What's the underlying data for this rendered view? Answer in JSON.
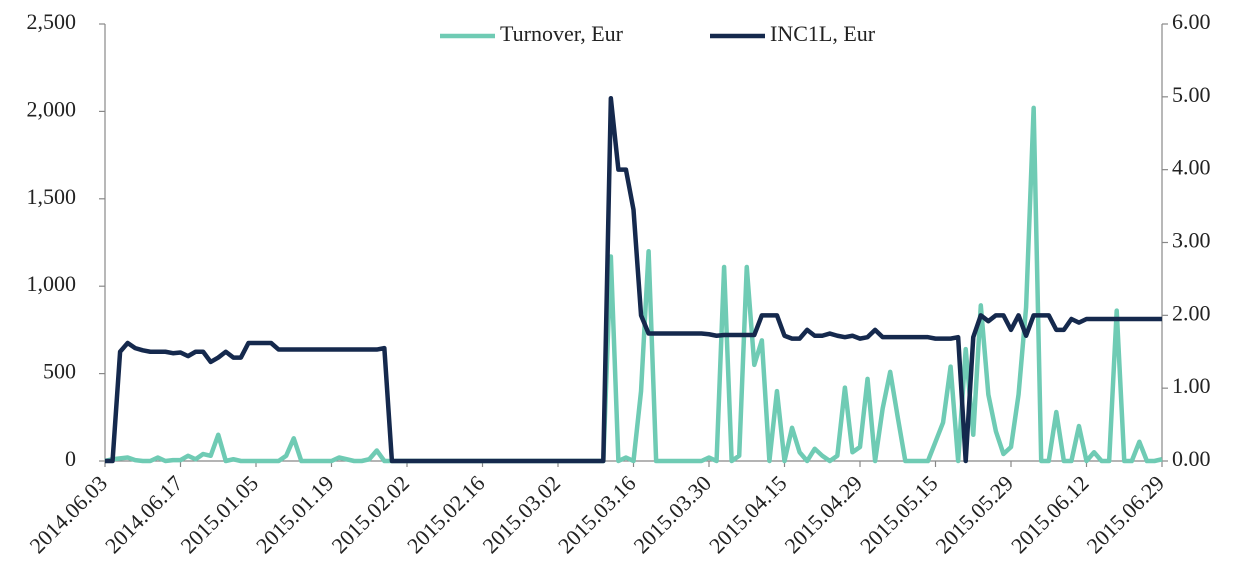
{
  "chart_data": {
    "type": "line",
    "legend": "top",
    "categories": [
      "2014.06.03",
      null,
      null,
      null,
      null,
      null,
      null,
      null,
      null,
      null,
      "2014.06.17",
      null,
      null,
      null,
      null,
      null,
      null,
      null,
      null,
      null,
      "2015.01.05",
      null,
      null,
      null,
      null,
      null,
      null,
      null,
      null,
      null,
      "2015.01.19",
      null,
      null,
      null,
      null,
      null,
      null,
      null,
      null,
      null,
      "2015.02.02",
      null,
      null,
      null,
      null,
      null,
      null,
      null,
      null,
      null,
      "2015.02.16",
      null,
      null,
      null,
      null,
      null,
      null,
      null,
      null,
      null,
      "2015.03.02",
      null,
      null,
      null,
      null,
      null,
      null,
      null,
      null,
      null,
      "2015.03.16",
      null,
      null,
      null,
      null,
      null,
      null,
      null,
      null,
      null,
      "2015.03.30",
      null,
      null,
      null,
      null,
      null,
      null,
      null,
      null,
      null,
      "2015.04.15",
      null,
      null,
      null,
      null,
      null,
      null,
      null,
      null,
      null,
      "2015.04.29",
      null,
      null,
      null,
      null,
      null,
      null,
      null,
      null,
      null,
      "2015.05.15",
      null,
      null,
      null,
      null,
      null,
      null,
      null,
      null,
      null,
      "2015.05.29",
      null,
      null,
      null,
      null,
      null,
      null,
      null,
      null,
      null,
      "2015.06.12",
      null,
      null,
      null,
      null,
      null,
      null,
      null,
      null,
      null,
      "2015.06.29"
    ],
    "series": [
      {
        "name": "Turnover, Eur",
        "color": "#6fcbb4",
        "values": [
          0,
          10,
          15,
          20,
          5,
          0,
          0,
          20,
          0,
          5,
          5,
          30,
          10,
          40,
          30,
          150,
          0,
          10,
          0,
          0,
          0,
          0,
          0,
          0,
          30,
          130,
          0,
          0,
          0,
          0,
          0,
          20,
          10,
          0,
          0,
          10,
          60,
          0,
          0,
          0,
          0,
          0,
          0,
          0,
          0,
          0,
          0,
          0,
          0,
          0,
          0,
          0,
          0,
          0,
          0,
          0,
          0,
          0,
          0,
          0,
          0,
          0,
          0,
          0,
          0,
          0,
          0,
          1170,
          0,
          20,
          0,
          400,
          1200,
          0,
          0,
          0,
          0,
          0,
          0,
          0,
          20,
          0,
          1110,
          0,
          30,
          1110,
          550,
          690,
          0,
          400,
          0,
          190,
          50,
          0,
          70,
          30,
          0,
          30,
          420,
          50,
          80,
          470,
          0,
          300,
          510,
          250,
          0,
          0,
          0,
          0,
          110,
          220,
          540,
          0,
          640,
          150,
          890,
          380,
          170,
          40,
          80,
          380,
          880,
          2020,
          0,
          0,
          280,
          0,
          0,
          200,
          0,
          50,
          0,
          0,
          860,
          0,
          0,
          110,
          0,
          0,
          10
        ]
      },
      {
        "name": "INC1L, Eur",
        "color": "#15294d",
        "axis": "y2",
        "values": [
          0,
          0,
          1.5,
          1.62,
          1.55,
          1.52,
          1.5,
          1.5,
          1.5,
          1.48,
          1.49,
          1.44,
          1.5,
          1.5,
          1.36,
          1.42,
          1.5,
          1.42,
          1.42,
          1.62,
          1.62,
          1.62,
          1.62,
          1.53,
          1.53,
          1.53,
          1.53,
          1.53,
          1.53,
          1.53,
          1.53,
          1.53,
          1.53,
          1.53,
          1.53,
          1.53,
          1.53,
          1.55,
          0,
          0,
          0,
          0,
          0,
          0,
          0,
          0,
          0,
          0,
          0,
          0,
          0,
          0,
          0,
          0,
          0,
          0,
          0,
          0,
          0,
          0,
          0,
          0,
          0,
          0,
          0,
          0,
          0,
          4.98,
          4.0,
          4.0,
          3.45,
          2.0,
          1.75,
          1.75,
          1.75,
          1.75,
          1.75,
          1.75,
          1.75,
          1.75,
          1.74,
          1.72,
          1.73,
          1.73,
          1.73,
          1.73,
          1.73,
          2.0,
          2.0,
          2.0,
          1.72,
          1.68,
          1.68,
          1.8,
          1.72,
          1.72,
          1.75,
          1.72,
          1.7,
          1.72,
          1.68,
          1.7,
          1.8,
          1.7,
          1.7,
          1.7,
          1.7,
          1.7,
          1.7,
          1.7,
          1.68,
          1.68,
          1.68,
          1.7,
          0,
          1.7,
          2.0,
          1.92,
          2.0,
          2.0,
          1.8,
          2.0,
          1.72,
          2.0,
          2.0,
          2.0,
          1.8,
          1.8,
          1.95,
          1.9,
          1.95,
          1.95,
          1.95,
          1.95,
          1.95,
          1.95,
          1.95,
          1.95,
          1.95,
          1.95,
          1.95
        ]
      }
    ],
    "ylim": [
      0,
      2500
    ],
    "yticks": [
      0,
      500,
      {
        "value": 1000,
        "label": "1,000"
      },
      {
        "value": 1500,
        "label": "1,500"
      },
      {
        "value": 2000,
        "label": "2,000"
      },
      {
        "value": 2500,
        "label": "2,500"
      }
    ],
    "y2lim": [
      0,
      6
    ],
    "y2ticks": [
      {
        "value": 0,
        "label": "0.00"
      },
      {
        "value": 1,
        "label": "1.00"
      },
      {
        "value": 2,
        "label": "2.00"
      },
      {
        "value": 3,
        "label": "3.00"
      },
      {
        "value": 4,
        "label": "4.00"
      },
      {
        "value": 5,
        "label": "5.00"
      },
      {
        "value": 6,
        "label": "6.00"
      }
    ]
  }
}
